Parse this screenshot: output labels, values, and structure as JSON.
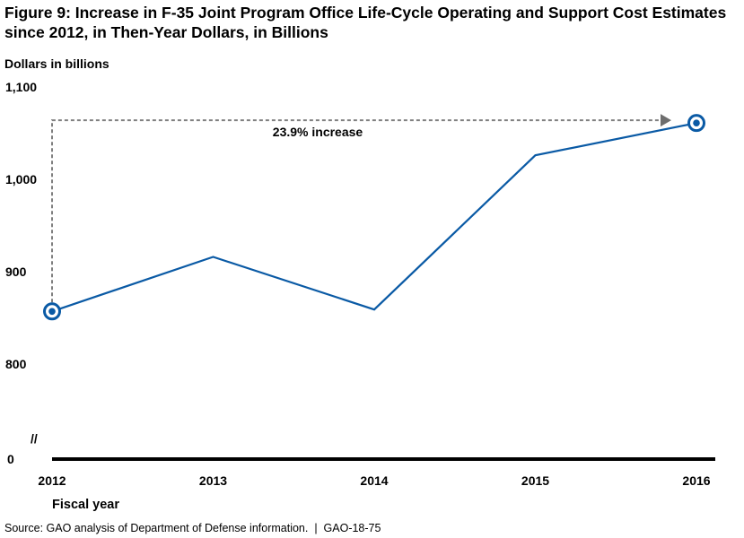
{
  "chart_data": {
    "type": "line",
    "title": "Figure 9: Increase in F-35 Joint Program Office Life-Cycle Operating and Support Cost Estimates since 2012, in Then-Year Dollars, in Billions",
    "ylabel": "Dollars in billions",
    "xlabel": "Fiscal year",
    "categories": [
      "2012",
      "2013",
      "2014",
      "2015",
      "2016"
    ],
    "series": [
      {
        "name": "Life-cycle O&S cost estimate",
        "values": [
          857,
          916,
          859,
          1026,
          1061
        ],
        "color": "#0a5aa5"
      }
    ],
    "ylim": [
      800,
      1100
    ],
    "yticks": [
      1100,
      1000,
      900,
      800
    ],
    "ytick_labels": [
      "1,100",
      "1,000",
      "900",
      "800"
    ],
    "axis_zero_label": "0",
    "axis_break_marker": "//",
    "highlighted_points": [
      "2012",
      "2016"
    ],
    "annotation": "23.9% increase",
    "source": "Source: GAO analysis of Department of Defense information.",
    "report_id": "GAO-18-75"
  }
}
